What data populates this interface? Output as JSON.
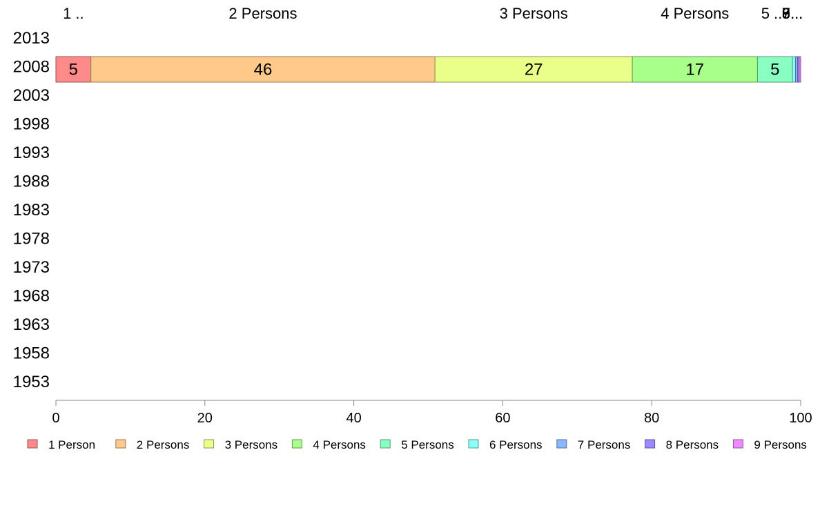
{
  "chart_data": {
    "type": "bar",
    "orientation": "horizontal",
    "stacked": true,
    "categories": [
      "2013",
      "2008",
      "2003",
      "1998",
      "1993",
      "1988",
      "1983",
      "1978",
      "1973",
      "1968",
      "1963",
      "1958",
      "1953"
    ],
    "top_labels": [
      "1 ..",
      "2 Persons",
      "3 Persons",
      "4 Persons",
      "5 ..",
      "6...",
      "7...",
      "8...",
      "9..."
    ],
    "series": [
      {
        "name": "1 Person",
        "color": "#ff8a8a",
        "values": [
          null,
          4.7,
          null,
          null,
          null,
          null,
          null,
          null,
          null,
          null,
          null,
          null,
          null
        ],
        "label": "5"
      },
      {
        "name": "2 Persons",
        "color": "#ffc98a",
        "values": [
          null,
          46.2,
          null,
          null,
          null,
          null,
          null,
          null,
          null,
          null,
          null,
          null,
          null
        ],
        "label": "46"
      },
      {
        "name": "3 Persons",
        "color": "#eaff8a",
        "values": [
          null,
          26.5,
          null,
          null,
          null,
          null,
          null,
          null,
          null,
          null,
          null,
          null,
          null
        ],
        "label": "27"
      },
      {
        "name": "4 Persons",
        "color": "#a8ff8a",
        "values": [
          null,
          16.8,
          null,
          null,
          null,
          null,
          null,
          null,
          null,
          null,
          null,
          null,
          null
        ],
        "label": "17"
      },
      {
        "name": "5 Persons",
        "color": "#8affc2",
        "values": [
          null,
          4.7,
          null,
          null,
          null,
          null,
          null,
          null,
          null,
          null,
          null,
          null,
          null
        ],
        "label": "5"
      },
      {
        "name": "6 Persons",
        "color": "#8afff5",
        "values": [
          null,
          0.4,
          null,
          null,
          null,
          null,
          null,
          null,
          null,
          null,
          null,
          null,
          null
        ],
        "label": ""
      },
      {
        "name": "7 Persons",
        "color": "#8ab8ff",
        "values": [
          null,
          0.3,
          null,
          null,
          null,
          null,
          null,
          null,
          null,
          null,
          null,
          null,
          null
        ],
        "label": ""
      },
      {
        "name": "8 Persons",
        "color": "#9a8aff",
        "values": [
          null,
          0.2,
          null,
          null,
          null,
          null,
          null,
          null,
          null,
          null,
          null,
          null,
          null
        ],
        "label": ""
      },
      {
        "name": "9 Persons",
        "color": "#ee8aff",
        "values": [
          null,
          0.2,
          null,
          null,
          null,
          null,
          null,
          null,
          null,
          null,
          null,
          null,
          null
        ],
        "label": ""
      }
    ],
    "xlim": [
      0,
      100
    ],
    "xticks": [
      "0",
      "20",
      "40",
      "60",
      "80",
      "100"
    ],
    "grid": false,
    "legend_position": "bottom"
  }
}
